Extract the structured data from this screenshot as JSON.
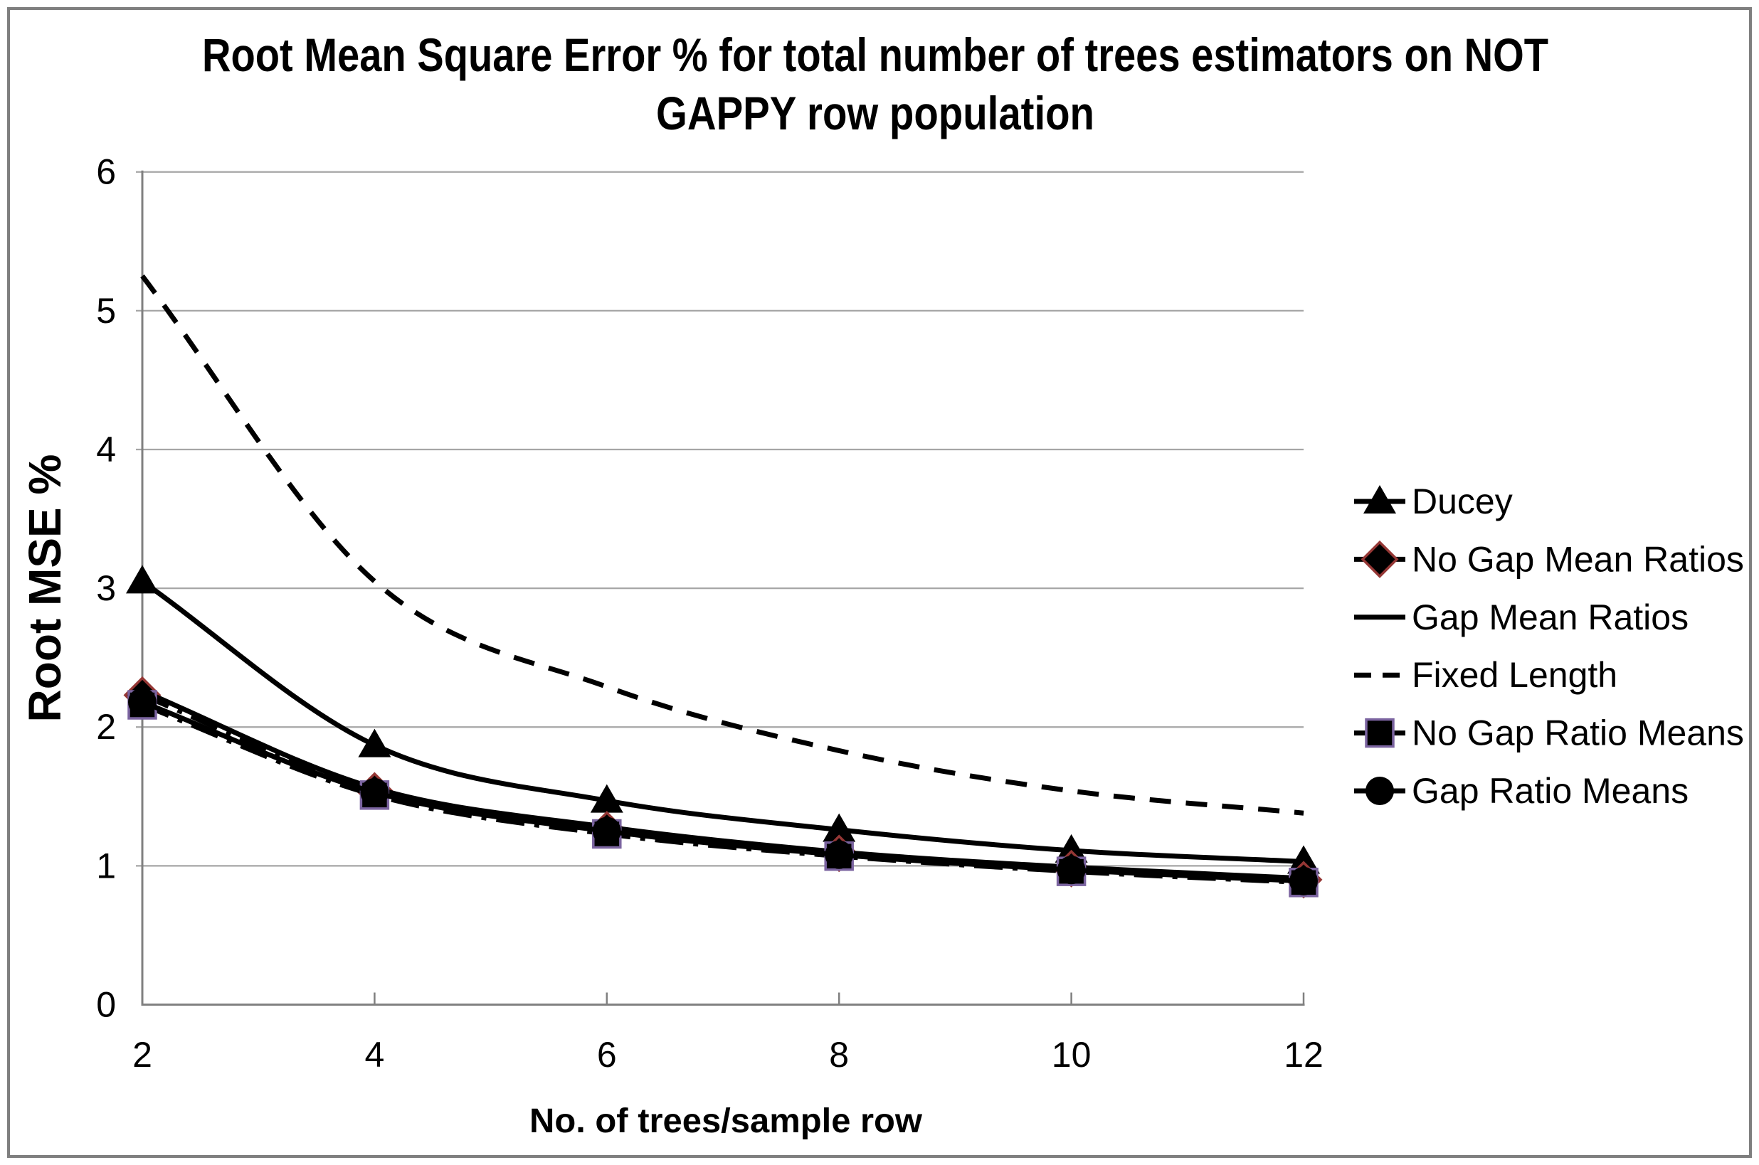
{
  "title": {
    "line1": "Root Mean Square Error % for total number of trees estimators on NOT",
    "line2": "GAPPY row population"
  },
  "chart_data": {
    "type": "line",
    "smoothed": true,
    "x": [
      2,
      4,
      6,
      8,
      10,
      12
    ],
    "xlabel": "No. of trees/sample row",
    "ylabel": "Root MSE %",
    "xlim": [
      2,
      12
    ],
    "ylim": [
      0,
      6
    ],
    "xticks": [
      2,
      4,
      6,
      8,
      10,
      12
    ],
    "yticks": [
      0,
      1,
      2,
      3,
      4,
      5,
      6
    ],
    "grid": "horizontal-only",
    "legend_position": "right-middle",
    "series": [
      {
        "name": "Ducey",
        "line": "solid",
        "marker": "triangle",
        "color": "#000000",
        "marker_stroke": "#000000",
        "values": [
          3.05,
          1.87,
          1.47,
          1.26,
          1.11,
          1.03
        ]
      },
      {
        "name": "No Gap Mean Ratios",
        "line": "dashdot",
        "marker": "diamond",
        "color": "#000000",
        "marker_stroke": "#953735",
        "values": [
          2.23,
          1.54,
          1.26,
          1.09,
          0.98,
          0.9
        ]
      },
      {
        "name": "Gap Mean Ratios",
        "line": "solid",
        "marker": "none",
        "color": "#000000",
        "marker_stroke": "#000000",
        "values": [
          2.26,
          1.56,
          1.28,
          1.1,
          0.99,
          0.91
        ]
      },
      {
        "name": "Fixed Length",
        "line": "dashed",
        "marker": "none",
        "color": "#000000",
        "marker_stroke": "#000000",
        "values": [
          5.25,
          3.05,
          2.29,
          1.83,
          1.54,
          1.38
        ]
      },
      {
        "name": "No Gap Ratio Means",
        "line": "dashdot",
        "marker": "square",
        "color": "#000000",
        "marker_stroke": "#7B64A0",
        "values": [
          2.16,
          1.51,
          1.23,
          1.07,
          0.96,
          0.88
        ]
      },
      {
        "name": "Gap Ratio Means",
        "line": "solid",
        "marker": "circle",
        "color": "#000000",
        "marker_stroke": "#000000",
        "values": [
          2.18,
          1.53,
          1.25,
          1.08,
          0.97,
          0.89
        ]
      }
    ]
  },
  "colors": {
    "line": "#000000",
    "gridline": "#A6A6A6",
    "axis": "#808080",
    "outer_border": "#7F7F7F",
    "diamond_edge": "#953735",
    "square_edge": "#7B64A0",
    "background": "#FFFFFF"
  }
}
